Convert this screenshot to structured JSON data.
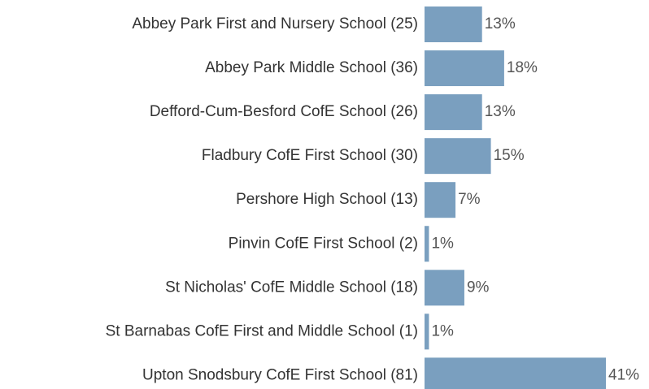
{
  "chart_data": {
    "type": "bar",
    "orientation": "horizontal",
    "categories": [
      "Abbey Park First and Nursery School (25)",
      "Abbey Park Middle School (36)",
      "Defford-Cum-Besford CofE School (26)",
      "Fladbury CofE First School (30)",
      "Pershore High School (13)",
      "Pinvin CofE First School (2)",
      "St Nicholas' CofE Middle School (18)",
      "St Barnabas CofE First and Middle School (1)",
      "Upton Snodsbury CofE First School (81)"
    ],
    "values": [
      13,
      18,
      13,
      15,
      7,
      1,
      9,
      1,
      41
    ],
    "value_labels": [
      "13%",
      "18%",
      "13%",
      "15%",
      "7%",
      "1%",
      "9%",
      "1%",
      "41%"
    ],
    "color": "#7a9fbf"
  }
}
